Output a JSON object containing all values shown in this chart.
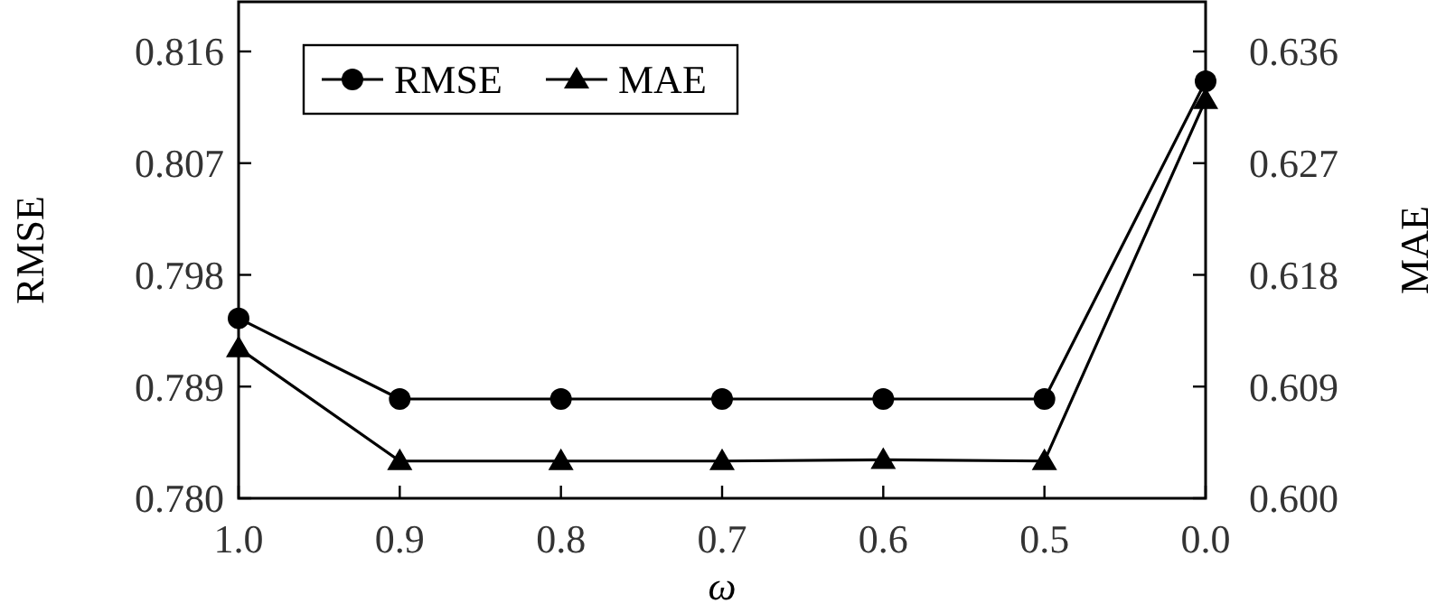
{
  "chart_data": {
    "type": "line",
    "xlabel": "ω",
    "ylabel": "RMSE",
    "y2label": "MAE",
    "categories": [
      "1.0",
      "0.9",
      "0.8",
      "0.7",
      "0.6",
      "0.5",
      "0.0"
    ],
    "series": [
      {
        "name": "RMSE",
        "color": "#000000",
        "marker": "circle",
        "values": [
          0.7945,
          0.788,
          0.788,
          0.788,
          0.788,
          0.788,
          0.8136
        ]
      },
      {
        "name": "MAE",
        "color": "#000000",
        "marker": "triangle",
        "axis": "y2",
        "values": [
          0.6121,
          0.603,
          0.603,
          0.603,
          0.6031,
          0.603,
          0.6321
        ]
      }
    ],
    "ylim": [
      0.78,
      0.82
    ],
    "yticks": [
      {
        "value": 0.78,
        "label": "0.780"
      },
      0.789,
      0.798,
      0.807,
      0.816
    ],
    "y2lim": [
      0.6,
      0.64
    ],
    "y2ticks": [
      {
        "value": 0.6,
        "label": "0.600"
      },
      0.609,
      0.618,
      0.627,
      0.636
    ],
    "legend": "top left",
    "grid": false,
    "line_style": "solid"
  }
}
